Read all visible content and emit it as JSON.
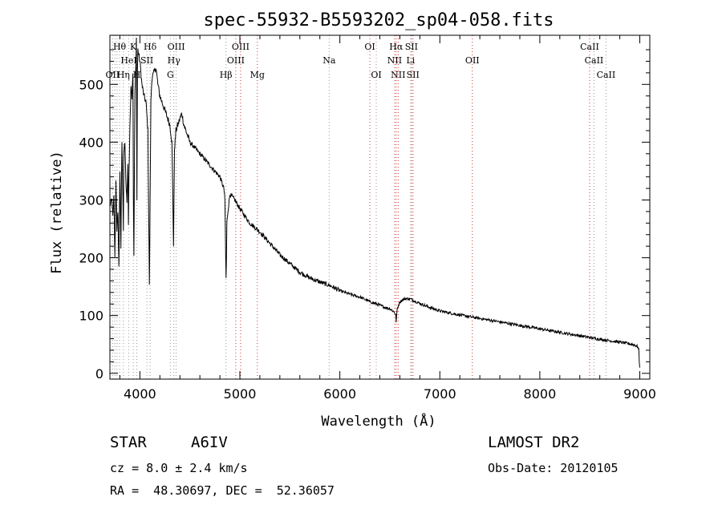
{
  "chart_data": {
    "type": "line",
    "title": "spec-55932-B5593202_sp04-058.fits",
    "xlabel": "Wavelength (Å)",
    "ylabel": "Flux (relative)",
    "xlim": [
      3700,
      9100
    ],
    "ylim": [
      -10,
      585
    ],
    "x_ticks": [
      4000,
      5000,
      6000,
      7000,
      8000,
      9000
    ],
    "y_ticks": [
      0,
      100,
      200,
      300,
      400,
      500
    ],
    "grid": false,
    "series": [
      {
        "x": [
          3700,
          3720,
          3730,
          3740,
          3750,
          3760,
          3770,
          3780,
          3790,
          3800,
          3810,
          3820,
          3830,
          3835,
          3840,
          3850,
          3860,
          3870,
          3880,
          3885,
          3890,
          3900,
          3910,
          3920,
          3930,
          3935,
          3940,
          3950,
          3960,
          3965,
          3970,
          3975,
          3980,
          4000,
          4020,
          4040,
          4060,
          4080,
          4095,
          4102,
          4110,
          4120,
          4140,
          4160,
          4180,
          4200,
          4220,
          4240,
          4260,
          4280,
          4300,
          4320,
          4330,
          4336,
          4341,
          4346,
          4352,
          4360,
          4380,
          4400,
          4420,
          4440,
          4460,
          4480,
          4500,
          4550,
          4600,
          4650,
          4700,
          4750,
          4800,
          4820,
          4840,
          4850,
          4855,
          4858,
          4862,
          4866,
          4870,
          4880,
          4900,
          4950,
          5000,
          5100,
          5200,
          5300,
          5400,
          5500,
          5600,
          5700,
          5800,
          5900,
          6000,
          6100,
          6200,
          6300,
          6400,
          6450,
          6500,
          6530,
          6550,
          6560,
          6563,
          6568,
          6575,
          6600,
          6650,
          6700,
          6800,
          6900,
          7000,
          7200,
          7400,
          7600,
          7800,
          8000,
          8200,
          8400,
          8600,
          8800,
          8900,
          8950,
          8980,
          8990,
          8995,
          9000
        ],
        "y": [
          290,
          300,
          270,
          310,
          200,
          330,
          250,
          280,
          180,
          350,
          220,
          400,
          300,
          250,
          380,
          400,
          330,
          300,
          360,
          260,
          340,
          420,
          500,
          480,
          520,
          300,
          200,
          480,
          540,
          580,
          300,
          520,
          560,
          540,
          500,
          480,
          470,
          420,
          150,
          300,
          470,
          510,
          520,
          530,
          500,
          480,
          470,
          460,
          450,
          440,
          430,
          400,
          300,
          220,
          300,
          390,
          400,
          420,
          430,
          440,
          450,
          430,
          420,
          410,
          400,
          390,
          380,
          370,
          360,
          350,
          340,
          330,
          320,
          300,
          250,
          200,
          165,
          200,
          260,
          280,
          310,
          300,
          285,
          260,
          245,
          225,
          205,
          190,
          175,
          165,
          158,
          152,
          143,
          137,
          132,
          124,
          118,
          114,
          112,
          108,
          105,
          100,
          90,
          100,
          112,
          124,
          129,
          129,
          121,
          114,
          108,
          101,
          95,
          89,
          83,
          77,
          71,
          65,
          59,
          54,
          51,
          49,
          46,
          40,
          20,
          10
        ],
        "color": "#000000"
      }
    ],
    "line_markers": [
      {
        "label": "Hθ",
        "x": 3797,
        "row": 0
      },
      {
        "label": "K",
        "x": 3934,
        "row": 0
      },
      {
        "label": "Hδ",
        "x": 4102,
        "row": 0
      },
      {
        "label": "OIII",
        "x": 4363,
        "row": 0
      },
      {
        "label": "OIII",
        "x": 5007,
        "row": 0
      },
      {
        "label": "OI",
        "x": 6300,
        "row": 0
      },
      {
        "label": "Hα",
        "x": 6563,
        "row": 0
      },
      {
        "label": "SII",
        "x": 6716,
        "row": 0
      },
      {
        "label": "CaII",
        "x": 8498,
        "row": 0
      },
      {
        "label": "HeI",
        "x": 3889,
        "row": 1
      },
      {
        "label": "SII",
        "x": 4070,
        "row": 1
      },
      {
        "label": "Hγ",
        "x": 4340,
        "row": 1
      },
      {
        "label": "OIII",
        "x": 4959,
        "row": 1
      },
      {
        "label": "Na",
        "x": 5893,
        "row": 1
      },
      {
        "label": "NII",
        "x": 6548,
        "row": 1
      },
      {
        "label": "Li",
        "x": 6708,
        "row": 1
      },
      {
        "label": "OII",
        "x": 7325,
        "row": 1
      },
      {
        "label": "CaII",
        "x": 8542,
        "row": 1
      },
      {
        "label": "OII",
        "x": 3727,
        "row": 2
      },
      {
        "label": "Hη",
        "x": 3835,
        "row": 2
      },
      {
        "label": "H",
        "x": 3969,
        "row": 2
      },
      {
        "label": "G",
        "x": 4305,
        "row": 2
      },
      {
        "label": "Hβ",
        "x": 4861,
        "row": 2
      },
      {
        "label": "Mg",
        "x": 5175,
        "row": 2
      },
      {
        "label": "OI",
        "x": 6364,
        "row": 2
      },
      {
        "label": "NII",
        "x": 6583,
        "row": 2
      },
      {
        "label": "SII",
        "x": 6731,
        "row": 2
      },
      {
        "label": "CaII",
        "x": 8662,
        "row": 2
      }
    ],
    "marker_lines": [
      {
        "x": 3727,
        "color": "#999999"
      },
      {
        "x": 3750,
        "color": "#999999"
      },
      {
        "x": 3771,
        "color": "#999999"
      },
      {
        "x": 3797,
        "color": "#999999"
      },
      {
        "x": 3835,
        "color": "#999999"
      },
      {
        "x": 3889,
        "color": "#999999"
      },
      {
        "x": 3934,
        "color": "#999999"
      },
      {
        "x": 3969,
        "color": "#999999"
      },
      {
        "x": 4070,
        "color": "#999999"
      },
      {
        "x": 4102,
        "color": "#999999"
      },
      {
        "x": 4305,
        "color": "#999999"
      },
      {
        "x": 4340,
        "color": "#999999"
      },
      {
        "x": 4363,
        "color": "#999999"
      },
      {
        "x": 4861,
        "color": "#999999"
      },
      {
        "x": 4959,
        "color": "#cc3333"
      },
      {
        "x": 5007,
        "color": "#cc3333"
      },
      {
        "x": 5175,
        "color": "#cc3333"
      },
      {
        "x": 5893,
        "color": "#999999"
      },
      {
        "x": 6300,
        "color": "#cc3333"
      },
      {
        "x": 6364,
        "color": "#999999"
      },
      {
        "x": 6548,
        "color": "#cc3333"
      },
      {
        "x": 6563,
        "color": "#cc3333"
      },
      {
        "x": 6583,
        "color": "#cc3333"
      },
      {
        "x": 6708,
        "color": "#999999"
      },
      {
        "x": 6716,
        "color": "#cc3333"
      },
      {
        "x": 6731,
        "color": "#cc3333"
      },
      {
        "x": 7325,
        "color": "#cc3333"
      },
      {
        "x": 8498,
        "color": "#cc3333"
      },
      {
        "x": 8542,
        "color": "#999999"
      },
      {
        "x": 8662,
        "color": "#999999"
      }
    ]
  },
  "footer": {
    "object_class": "STAR",
    "subclass": "A6IV",
    "survey": "LAMOST DR2",
    "cz": "cz = 8.0 ± 2.4 km/s",
    "obs_date": "Obs-Date: 20120105",
    "coords": "RA =  48.30697, DEC =  52.36057"
  }
}
